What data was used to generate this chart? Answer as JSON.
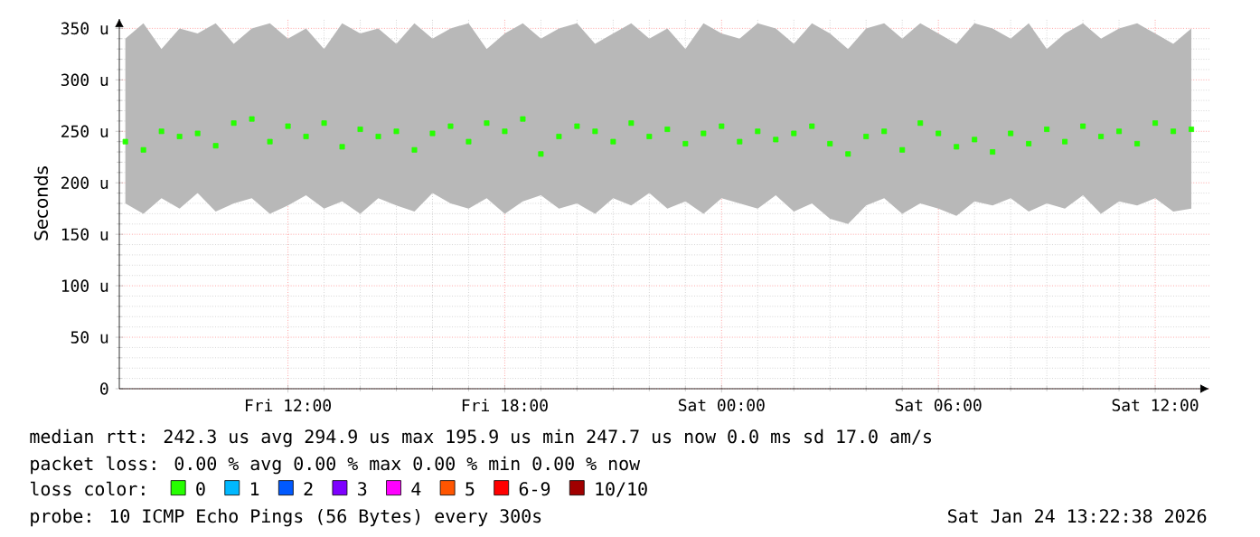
{
  "chart_data": {
    "type": "scatter",
    "ylabel": "Seconds",
    "x": [
      "2026-01-23T07:30",
      "2026-01-23T08:00",
      "2026-01-23T08:30",
      "2026-01-23T09:00",
      "2026-01-23T09:30",
      "2026-01-23T10:00",
      "2026-01-23T10:30",
      "2026-01-23T11:00",
      "2026-01-23T11:30",
      "2026-01-23T12:00",
      "2026-01-23T12:30",
      "2026-01-23T13:00",
      "2026-01-23T13:30",
      "2026-01-23T14:00",
      "2026-01-23T14:30",
      "2026-01-23T15:00",
      "2026-01-23T15:30",
      "2026-01-23T16:00",
      "2026-01-23T16:30",
      "2026-01-23T17:00",
      "2026-01-23T17:30",
      "2026-01-23T18:00",
      "2026-01-23T18:30",
      "2026-01-23T19:00",
      "2026-01-23T19:30",
      "2026-01-23T20:00",
      "2026-01-23T20:30",
      "2026-01-23T21:00",
      "2026-01-23T21:30",
      "2026-01-23T22:00",
      "2026-01-23T22:30",
      "2026-01-23T23:00",
      "2026-01-23T23:30",
      "2026-01-24T00:00",
      "2026-01-24T00:30",
      "2026-01-24T01:00",
      "2026-01-24T01:30",
      "2026-01-24T02:00",
      "2026-01-24T02:30",
      "2026-01-24T03:00",
      "2026-01-24T03:30",
      "2026-01-24T04:00",
      "2026-01-24T04:30",
      "2026-01-24T05:00",
      "2026-01-24T05:30",
      "2026-01-24T06:00",
      "2026-01-24T06:30",
      "2026-01-24T07:00",
      "2026-01-24T07:30",
      "2026-01-24T08:00",
      "2026-01-24T08:30",
      "2026-01-24T09:00",
      "2026-01-24T09:30",
      "2026-01-24T10:00",
      "2026-01-24T10:30",
      "2026-01-24T11:00",
      "2026-01-24T11:30",
      "2026-01-24T12:00",
      "2026-01-24T12:30",
      "2026-01-24T13:00"
    ],
    "series": [
      {
        "name": "0",
        "color": "#26ff00",
        "values": [
          240,
          232,
          250,
          245,
          248,
          236,
          258,
          262,
          240,
          255,
          245,
          258,
          235,
          252,
          245,
          250,
          232,
          248,
          255,
          240,
          258,
          250,
          262,
          228,
          245,
          255,
          250,
          240,
          258,
          245,
          252,
          238,
          248,
          255,
          240,
          250,
          242,
          248,
          255,
          238,
          228,
          245,
          250,
          232,
          258,
          248,
          235,
          242,
          230,
          248,
          238,
          252,
          240,
          255,
          245,
          250,
          238,
          258,
          250,
          252
        ],
        "lower": [
          180,
          170,
          185,
          175,
          190,
          172,
          180,
          185,
          170,
          178,
          188,
          175,
          182,
          170,
          185,
          178,
          172,
          190,
          180,
          175,
          185,
          170,
          182,
          188,
          175,
          180,
          170,
          185,
          178,
          190,
          175,
          182,
          170,
          185,
          180,
          175,
          188,
          172,
          180,
          165,
          160,
          178,
          185,
          170,
          180,
          175,
          168,
          182,
          178,
          185,
          172,
          180,
          175,
          188,
          170,
          182,
          178,
          185,
          172,
          175
        ],
        "upper": [
          340,
          355,
          330,
          350,
          345,
          355,
          335,
          350,
          355,
          340,
          350,
          330,
          355,
          345,
          350,
          335,
          355,
          340,
          350,
          355,
          330,
          345,
          355,
          340,
          350,
          355,
          335,
          345,
          355,
          340,
          350,
          330,
          355,
          345,
          340,
          355,
          350,
          335,
          355,
          345,
          330,
          350,
          355,
          340,
          355,
          345,
          335,
          355,
          350,
          340,
          355,
          330,
          345,
          355,
          340,
          350,
          355,
          345,
          335,
          350
        ]
      },
      {
        "name": "1",
        "color": "#00b8ff",
        "values": [
          null,
          null,
          null,
          null,
          null,
          null,
          null,
          null,
          null,
          null,
          null,
          null,
          null,
          null,
          null,
          null,
          null,
          null,
          null,
          null,
          null,
          null,
          null,
          null,
          null,
          null,
          null,
          null,
          null,
          null,
          null,
          null,
          null,
          null,
          null,
          null,
          null,
          null,
          null,
          null,
          null,
          null,
          null,
          null,
          null,
          null,
          null,
          null,
          null,
          null,
          null,
          null,
          null,
          null,
          null,
          null,
          null,
          null,
          null,
          null
        ]
      },
      {
        "name": "2",
        "color": "#0059ff",
        "values": [
          null,
          null,
          null,
          null,
          null,
          null,
          null,
          null,
          null,
          null,
          null,
          null,
          null,
          null,
          null,
          null,
          null,
          null,
          null,
          null,
          null,
          null,
          null,
          null,
          null,
          null,
          null,
          null,
          null,
          null,
          null,
          null,
          null,
          null,
          null,
          null,
          null,
          null,
          null,
          null,
          null,
          null,
          null,
          null,
          null,
          null,
          null,
          null,
          null,
          null,
          null,
          null,
          null,
          null,
          null,
          null,
          null,
          null,
          null,
          null
        ]
      },
      {
        "name": "3",
        "color": "#7e00ff",
        "values": [
          null,
          null,
          null,
          null,
          null,
          null,
          null,
          null,
          null,
          null,
          null,
          null,
          null,
          null,
          null,
          null,
          null,
          null,
          null,
          null,
          null,
          null,
          null,
          null,
          null,
          null,
          null,
          null,
          null,
          null,
          null,
          null,
          null,
          null,
          null,
          null,
          null,
          null,
          null,
          null,
          null,
          null,
          null,
          null,
          null,
          null,
          null,
          null,
          null,
          null,
          null,
          null,
          null,
          null,
          null,
          null,
          null,
          null,
          null,
          null
        ]
      },
      {
        "name": "4",
        "color": "#ff00ff",
        "values": [
          null,
          null,
          null,
          null,
          null,
          null,
          null,
          null,
          null,
          null,
          null,
          null,
          null,
          null,
          null,
          null,
          null,
          null,
          null,
          null,
          null,
          null,
          null,
          null,
          null,
          null,
          null,
          null,
          null,
          null,
          null,
          null,
          null,
          null,
          null,
          null,
          null,
          null,
          null,
          null,
          null,
          null,
          null,
          null,
          null,
          null,
          null,
          null,
          null,
          null,
          null,
          null,
          null,
          null,
          null,
          null,
          null,
          null,
          null,
          null
        ]
      },
      {
        "name": "5",
        "color": "#ff5500",
        "values": [
          null,
          null,
          null,
          null,
          null,
          null,
          null,
          null,
          null,
          null,
          null,
          null,
          null,
          null,
          null,
          null,
          null,
          null,
          null,
          null,
          null,
          null,
          null,
          null,
          null,
          null,
          null,
          null,
          null,
          null,
          null,
          null,
          null,
          null,
          null,
          null,
          null,
          null,
          null,
          null,
          null,
          null,
          null,
          null,
          null,
          null,
          null,
          null,
          null,
          null,
          null,
          null,
          null,
          null,
          null,
          null,
          null,
          null,
          null,
          null
        ]
      },
      {
        "name": "6-9",
        "color": "#ff0000",
        "values": [
          null,
          null,
          null,
          null,
          null,
          null,
          null,
          null,
          null,
          null,
          null,
          null,
          null,
          null,
          null,
          null,
          null,
          null,
          null,
          null,
          null,
          null,
          null,
          null,
          null,
          null,
          null,
          null,
          null,
          null,
          null,
          null,
          null,
          null,
          null,
          null,
          null,
          null,
          null,
          null,
          null,
          null,
          null,
          null,
          null,
          null,
          null,
          null,
          null,
          null,
          null,
          null,
          null,
          null,
          null,
          null,
          null,
          null,
          null,
          null
        ]
      },
      {
        "name": "10/10",
        "color": "#a10000",
        "values": [
          null,
          null,
          null,
          null,
          null,
          null,
          null,
          null,
          null,
          null,
          null,
          null,
          null,
          null,
          null,
          null,
          null,
          null,
          null,
          null,
          null,
          null,
          null,
          null,
          null,
          null,
          null,
          null,
          null,
          null,
          null,
          null,
          null,
          null,
          null,
          null,
          null,
          null,
          null,
          null,
          null,
          null,
          null,
          null,
          null,
          null,
          null,
          null,
          null,
          null,
          null,
          null,
          null,
          null,
          null,
          null,
          null,
          null,
          null,
          null
        ]
      }
    ],
    "marker": "square",
    "legend": "bottom",
    "legend_title": "loss color:",
    "grid": true,
    "xlim": [
      "2026-01-23T07:20",
      "2026-01-24T13:30"
    ],
    "xticks": [
      {
        "value": "2026-01-23T12:00",
        "label": "Fri 12:00"
      },
      {
        "value": "2026-01-23T18:00",
        "label": "Fri 18:00"
      },
      {
        "value": "2026-01-24T00:00",
        "label": "Sat 00:00"
      },
      {
        "value": "2026-01-24T06:00",
        "label": "Sat 06:00"
      },
      {
        "value": "2026-01-24T12:00",
        "label": "Sat 12:00"
      }
    ],
    "ylim": [
      0,
      360
    ],
    "yticks": [
      0,
      {
        "value": 50,
        "label": "50 u"
      },
      {
        "value": 100,
        "label": "100 u"
      },
      {
        "value": 150,
        "label": "150 u"
      },
      {
        "value": 200,
        "label": "200 u"
      },
      {
        "value": 250,
        "label": "250 u"
      },
      {
        "value": 300,
        "label": "300 u"
      },
      {
        "value": 350,
        "label": "350 u"
      }
    ],
    "annotations": [
      "median rtt: 242.3 us avg 294.9 us max 195.9 us min 247.7 us now 0.0 ms sd 17.0 am/s",
      "packet loss: 0.00 % avg 0.00 % max 0.00 % min 0.00 % now",
      "probe: 10 ICMP Echo Pings (56 Bytes) every 300s",
      "Sat Jan 24 13:22:38 2026"
    ]
  }
}
